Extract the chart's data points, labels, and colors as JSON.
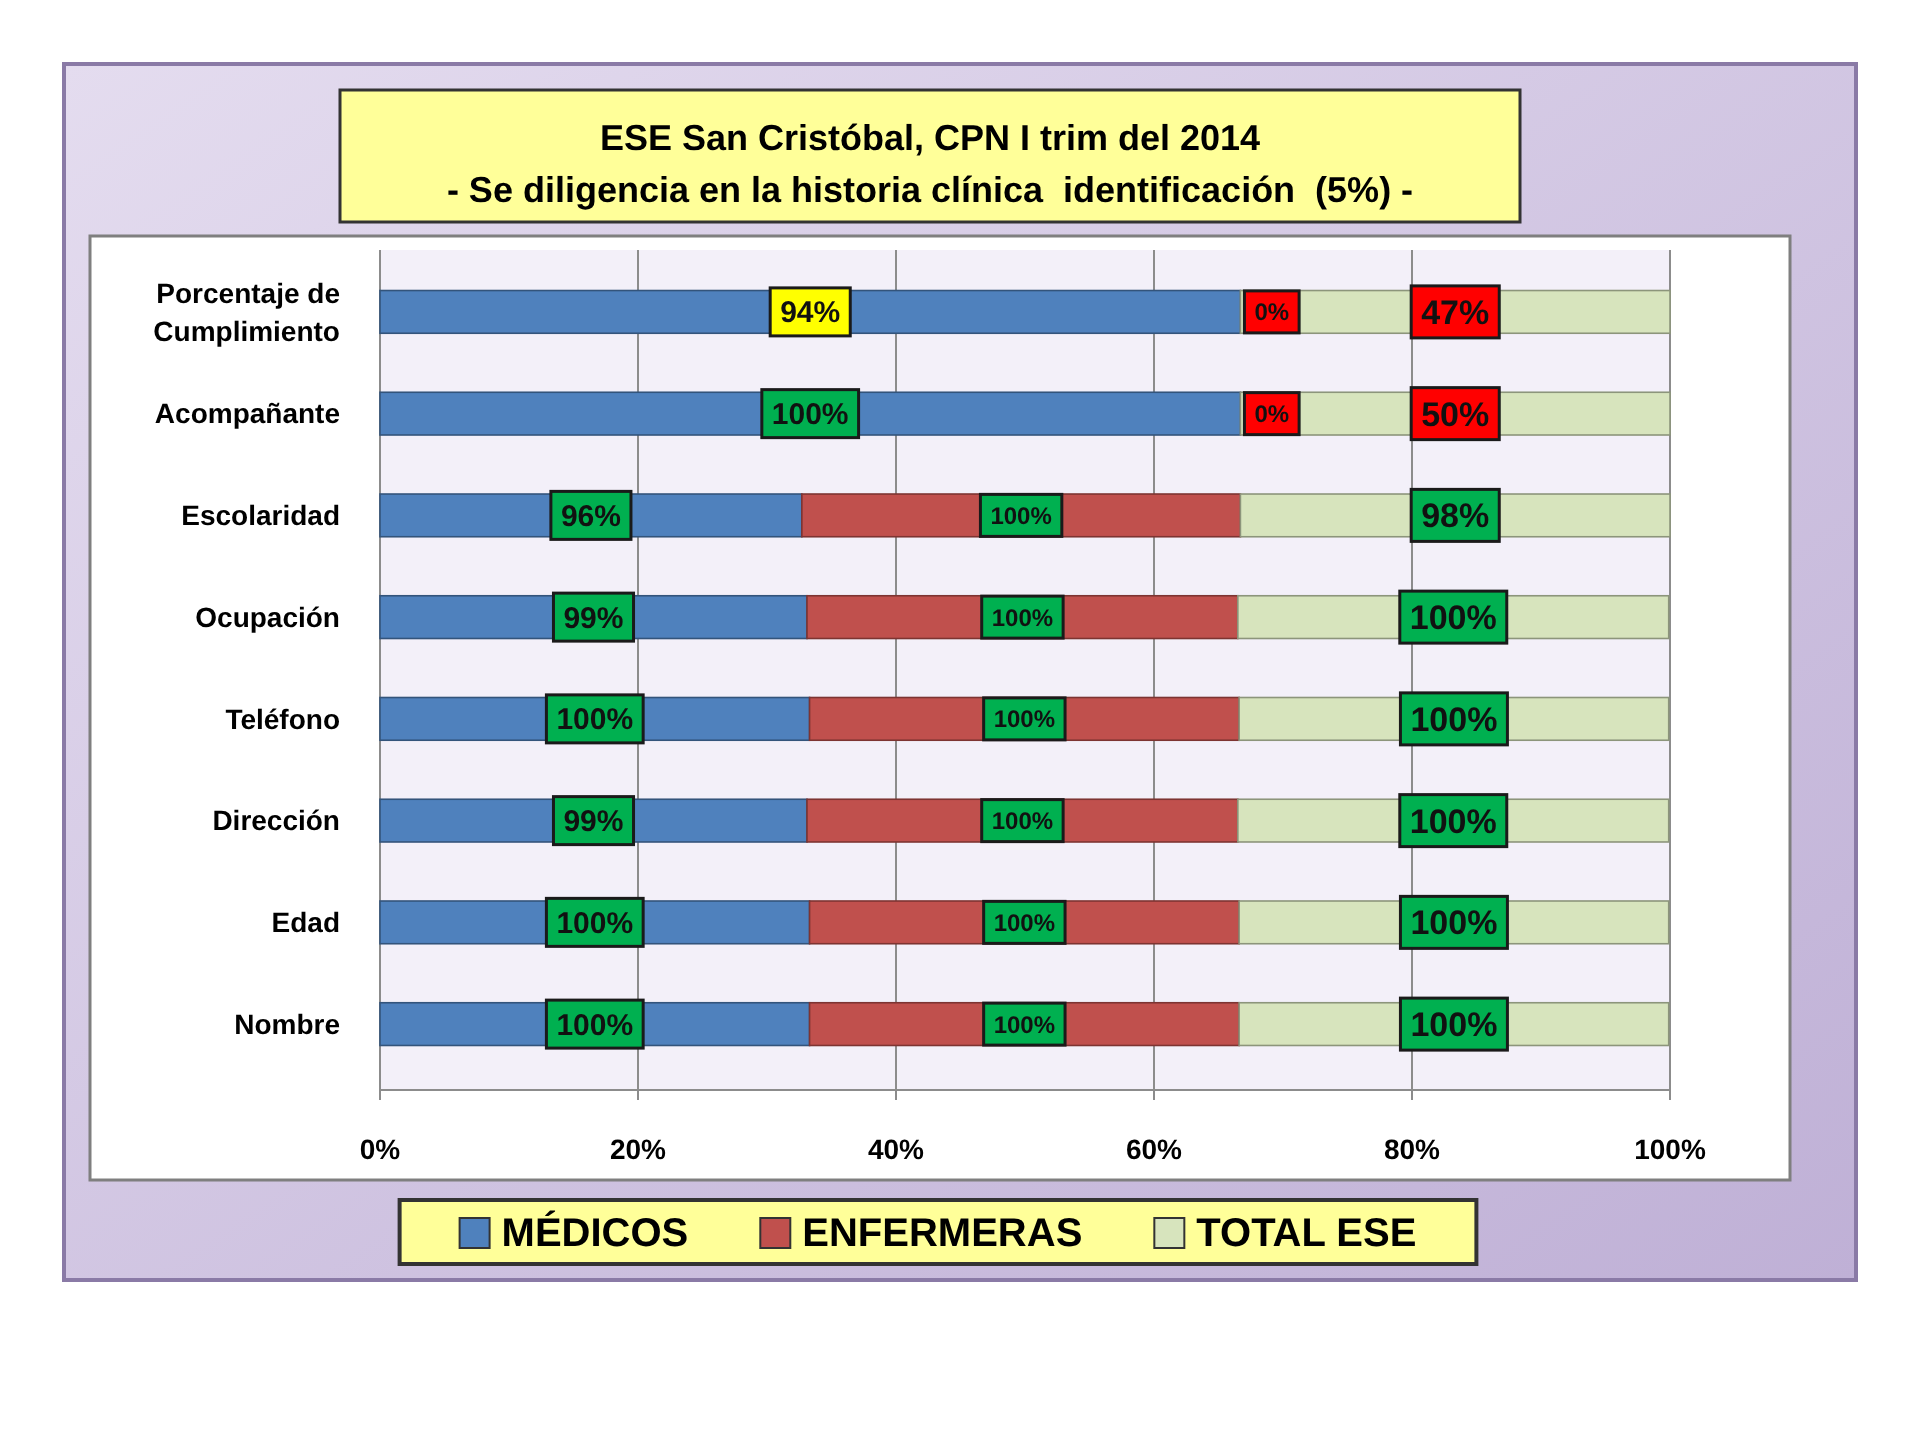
{
  "chart_data": {
    "type": "bar",
    "orientation": "horizontal",
    "stacked": true,
    "title": "ESE San Cristóbal, CPN I trim del 2014",
    "subtitle": "- Se diligencia en la historia clínica  identificación  (5%) -",
    "categories": [
      "Porcentaje de Cumplimiento",
      "Acompañante",
      "Escolaridad",
      "Ocupación",
      "Teléfono",
      "Dirección",
      "Edad",
      "Nombre"
    ],
    "series": [
      {
        "name": "MÉDICOS",
        "color": "#4f81bd",
        "values": [
          66.7,
          66.7,
          32.7,
          33.1,
          33.3,
          33.1,
          33.3,
          33.3
        ]
      },
      {
        "name": "ENFERMERAS",
        "color": "#c0504d",
        "values": [
          0,
          0,
          34.0,
          33.4,
          33.3,
          33.4,
          33.3,
          33.3
        ]
      },
      {
        "name": "TOTAL ESE",
        "color": "#d7e4bd",
        "values": [
          33.3,
          33.3,
          33.3,
          33.4,
          33.3,
          33.4,
          33.3,
          33.3
        ]
      }
    ],
    "annotations": [
      "94%",
      "0%",
      "47%",
      "100%",
      "0%",
      "50%",
      "96%",
      "100%",
      "98%",
      "99%",
      "100%",
      "100%",
      "100%",
      "100%",
      "100%",
      "99%",
      "100%",
      "100%",
      "100%",
      "100%",
      "100%",
      "100%",
      "100%",
      "100%"
    ],
    "xlim": [
      0,
      100
    ],
    "xticks": [
      {
        "value": 0,
        "label": "0%"
      },
      {
        "value": 20,
        "label": "20%"
      },
      {
        "value": 40,
        "label": "40%"
      },
      {
        "value": 60,
        "label": "60%"
      },
      {
        "value": 80,
        "label": "80%"
      },
      {
        "value": 100,
        "label": "100%"
      }
    ],
    "grid": "x",
    "legend": "bottom"
  }
}
